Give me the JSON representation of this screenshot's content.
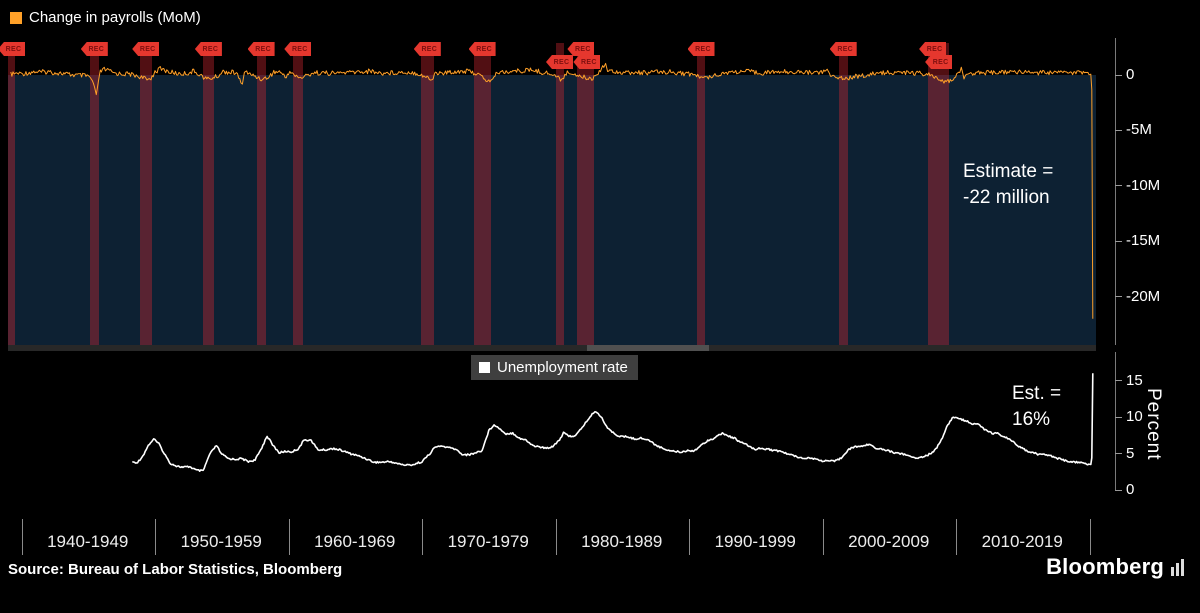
{
  "page": {
    "background": "#000000"
  },
  "x_axis": {
    "labels": [
      "1940-1949",
      "1950-1959",
      "1960-1969",
      "1970-1979",
      "1980-1989",
      "1990-1999",
      "2000-2009",
      "2010-2019"
    ]
  },
  "recessions": {
    "badge_label": "REC",
    "badge_color": "#e5372e",
    "band_color": "rgba(213,40,50,0.38)",
    "bands": [
      {
        "start": 1939.0,
        "end": 1939.5
      },
      {
        "start": 1945.1,
        "end": 1945.8
      },
      {
        "start": 1948.9,
        "end": 1949.8
      },
      {
        "start": 1953.6,
        "end": 1954.4
      },
      {
        "start": 1957.6,
        "end": 1958.3
      },
      {
        "start": 1960.3,
        "end": 1961.1
      },
      {
        "start": 1969.9,
        "end": 1970.9
      },
      {
        "start": 1973.9,
        "end": 1975.2
      },
      {
        "start": 1980.0,
        "end": 1980.6
      },
      {
        "start": 1981.6,
        "end": 1982.9
      },
      {
        "start": 1990.6,
        "end": 1991.2
      },
      {
        "start": 2001.2,
        "end": 2001.9
      },
      {
        "start": 2007.9,
        "end": 2009.5
      }
    ],
    "badges": [
      {
        "x": 1939.25,
        "row": 0
      },
      {
        "x": 1945.45,
        "row": 0
      },
      {
        "x": 1949.3,
        "row": 0
      },
      {
        "x": 1954.0,
        "row": 0
      },
      {
        "x": 1957.95,
        "row": 0
      },
      {
        "x": 1960.7,
        "row": 0
      },
      {
        "x": 1970.4,
        "row": 0
      },
      {
        "x": 1974.5,
        "row": 0
      },
      {
        "x": 1980.3,
        "row": 1
      },
      {
        "x": 1981.9,
        "row": 0
      },
      {
        "x": 1982.35,
        "row": 1
      },
      {
        "x": 1990.9,
        "row": 0
      },
      {
        "x": 2001.55,
        "row": 0
      },
      {
        "x": 2008.25,
        "row": 0
      },
      {
        "x": 2008.7,
        "row": 1
      }
    ]
  },
  "footer": {
    "source": "Source: Bureau of Labor Statistics, Bloomberg",
    "brand": "Bloomberg"
  },
  "chart_data": [
    {
      "type": "line",
      "legend": "Change in payrolls (MoM)",
      "line_color": "#ffa028",
      "plot_bg": "#0d2133",
      "annotation_lines": [
        "Estimate =",
        "-22 million"
      ],
      "y_unit": "millions of jobs",
      "ylim": [
        -23.5,
        3.3
      ],
      "xlim": [
        1939,
        2021.6
      ],
      "grid": false,
      "legend_position": "top-left",
      "y_ticks": [
        {
          "label": "0",
          "value": 0
        },
        {
          "label": "-5M",
          "value": -5
        },
        {
          "label": "-10M",
          "value": -10
        },
        {
          "label": "-15M",
          "value": -15
        },
        {
          "label": "-20M",
          "value": -20
        }
      ],
      "points": [
        [
          1939.2,
          0.05
        ],
        [
          1939.6,
          0.15
        ],
        [
          1940,
          0.1
        ],
        [
          1940.5,
          0.2
        ],
        [
          1941,
          0.3
        ],
        [
          1941.5,
          0.25
        ],
        [
          1942,
          0.3
        ],
        [
          1942.5,
          0.2
        ],
        [
          1943,
          0.15
        ],
        [
          1943.5,
          0.05
        ],
        [
          1944,
          0.0
        ],
        [
          1944.5,
          -0.05
        ],
        [
          1945.0,
          -0.1
        ],
        [
          1945.3,
          -0.5
        ],
        [
          1945.6,
          -1.9
        ],
        [
          1945.75,
          -0.6
        ],
        [
          1945.9,
          0.3
        ],
        [
          1946.2,
          0.5
        ],
        [
          1946.6,
          0.35
        ],
        [
          1947,
          0.15
        ],
        [
          1947.5,
          0.1
        ],
        [
          1948,
          0.1
        ],
        [
          1948.6,
          -0.05
        ],
        [
          1949,
          -0.2
        ],
        [
          1949.4,
          -0.45
        ],
        [
          1949.7,
          -0.25
        ],
        [
          1950,
          0.3
        ],
        [
          1950.4,
          0.55
        ],
        [
          1950.8,
          0.4
        ],
        [
          1951.2,
          0.25
        ],
        [
          1951.8,
          0.1
        ],
        [
          1952.4,
          0.15
        ],
        [
          1952.9,
          0.35
        ],
        [
          1953.3,
          0.1
        ],
        [
          1953.8,
          -0.35
        ],
        [
          1954.2,
          -0.3
        ],
        [
          1954.7,
          -0.1
        ],
        [
          1955.1,
          0.3
        ],
        [
          1955.6,
          0.25
        ],
        [
          1956.1,
          0.2
        ],
        [
          1956.55,
          -1.0
        ],
        [
          1956.7,
          0.45
        ],
        [
          1957.1,
          0.05
        ],
        [
          1957.7,
          -0.2
        ],
        [
          1958.1,
          -0.4
        ],
        [
          1958.5,
          -0.15
        ],
        [
          1958.9,
          0.25
        ],
        [
          1959.4,
          0.3
        ],
        [
          1959.75,
          -0.25
        ],
        [
          1960.1,
          0.35
        ],
        [
          1960.5,
          -0.1
        ],
        [
          1960.9,
          -0.25
        ],
        [
          1961.3,
          -0.1
        ],
        [
          1961.8,
          0.2
        ],
        [
          1962.5,
          0.2
        ],
        [
          1963.2,
          0.15
        ],
        [
          1964,
          0.2
        ],
        [
          1964.8,
          0.25
        ],
        [
          1965.5,
          0.3
        ],
        [
          1966.2,
          0.35
        ],
        [
          1966.9,
          0.15
        ],
        [
          1967.6,
          0.2
        ],
        [
          1968.4,
          0.25
        ],
        [
          1969.2,
          0.25
        ],
        [
          1969.8,
          0.1
        ],
        [
          1970.3,
          -0.2
        ],
        [
          1970.75,
          -0.45
        ],
        [
          1971,
          0.2
        ],
        [
          1971.6,
          0.15
        ],
        [
          1972.3,
          0.3
        ],
        [
          1973,
          0.35
        ],
        [
          1973.7,
          0.3
        ],
        [
          1974.2,
          0.05
        ],
        [
          1974.7,
          -0.35
        ],
        [
          1975.0,
          -0.6
        ],
        [
          1975.3,
          -0.3
        ],
        [
          1975.7,
          0.25
        ],
        [
          1976.3,
          0.3
        ],
        [
          1977,
          0.35
        ],
        [
          1977.7,
          0.4
        ],
        [
          1978.3,
          0.45
        ],
        [
          1979,
          0.25
        ],
        [
          1979.7,
          0.1
        ],
        [
          1980.2,
          -0.25
        ],
        [
          1980.45,
          -0.4
        ],
        [
          1980.8,
          0.15
        ],
        [
          1981.3,
          0.2
        ],
        [
          1981.8,
          -0.1
        ],
        [
          1982.3,
          -0.25
        ],
        [
          1982.8,
          -0.3
        ],
        [
          1983.2,
          0.25
        ],
        [
          1983.75,
          1.1
        ],
        [
          1983.9,
          0.35
        ],
        [
          1984.5,
          0.35
        ],
        [
          1985.2,
          0.2
        ],
        [
          1986,
          0.2
        ],
        [
          1986.8,
          0.2
        ],
        [
          1987.6,
          0.25
        ],
        [
          1988.4,
          0.3
        ],
        [
          1989.2,
          0.2
        ],
        [
          1989.8,
          0.1
        ],
        [
          1990.4,
          0.05
        ],
        [
          1990.8,
          -0.2
        ],
        [
          1991.2,
          -0.3
        ],
        [
          1991.7,
          -0.05
        ],
        [
          1992.3,
          0.1
        ],
        [
          1993,
          0.25
        ],
        [
          1993.8,
          0.3
        ],
        [
          1994.6,
          0.3
        ],
        [
          1995.4,
          0.2
        ],
        [
          1996.2,
          0.25
        ],
        [
          1997,
          0.3
        ],
        [
          1997.8,
          0.3
        ],
        [
          1998.6,
          0.25
        ],
        [
          1999.4,
          0.25
        ],
        [
          2000.1,
          0.3
        ],
        [
          2000.35,
          0.45
        ],
        [
          2000.6,
          -0.1
        ],
        [
          2001,
          -0.1
        ],
        [
          2001.5,
          -0.25
        ],
        [
          2001.9,
          -0.3
        ],
        [
          2002.4,
          -0.1
        ],
        [
          2003,
          -0.1
        ],
        [
          2003.6,
          0.05
        ],
        [
          2004.3,
          0.2
        ],
        [
          2005,
          0.2
        ],
        [
          2005.8,
          0.25
        ],
        [
          2006.5,
          0.2
        ],
        [
          2007.2,
          0.15
        ],
        [
          2007.8,
          0.1
        ],
        [
          2008.3,
          -0.2
        ],
        [
          2008.8,
          -0.5
        ],
        [
          2009.1,
          -0.75
        ],
        [
          2009.4,
          -0.55
        ],
        [
          2009.8,
          -0.25
        ],
        [
          2010.2,
          0.1
        ],
        [
          2010.4,
          0.5
        ],
        [
          2010.6,
          -0.15
        ],
        [
          2011,
          0.15
        ],
        [
          2011.7,
          0.2
        ],
        [
          2012.4,
          0.2
        ],
        [
          2013.1,
          0.2
        ],
        [
          2013.8,
          0.25
        ],
        [
          2014.5,
          0.3
        ],
        [
          2015.2,
          0.25
        ],
        [
          2016,
          0.2
        ],
        [
          2016.8,
          0.2
        ],
        [
          2017.6,
          0.2
        ],
        [
          2018.4,
          0.22
        ],
        [
          2019.2,
          0.18
        ],
        [
          2019.8,
          0.2
        ],
        [
          2020.1,
          0.25
        ],
        [
          2020.17,
          -1.4
        ],
        [
          2020.25,
          -22
        ]
      ]
    },
    {
      "type": "line",
      "legend": "Unemployment rate",
      "line_color": "#ffffff",
      "annotation_lines": [
        "Est. =",
        "16%"
      ],
      "ylabel": "Percent",
      "ylim": [
        0,
        19
      ],
      "xlim": [
        1939,
        2021.6
      ],
      "grid": false,
      "legend_position": "top-center",
      "y_ticks": [
        {
          "label": "15",
          "value": 15
        },
        {
          "label": "10",
          "value": 10
        },
        {
          "label": "5",
          "value": 5
        },
        {
          "label": "0",
          "value": 0
        }
      ],
      "points": [
        [
          1948.3,
          3.8
        ],
        [
          1948.7,
          3.8
        ],
        [
          1949.1,
          4.7
        ],
        [
          1949.5,
          6.1
        ],
        [
          1949.9,
          7.0
        ],
        [
          1950.3,
          6.3
        ],
        [
          1950.7,
          5.0
        ],
        [
          1951.1,
          3.7
        ],
        [
          1951.6,
          3.3
        ],
        [
          1952.1,
          3.1
        ],
        [
          1952.6,
          3.2
        ],
        [
          1953.1,
          2.7
        ],
        [
          1953.6,
          2.6
        ],
        [
          1954.1,
          4.9
        ],
        [
          1954.6,
          6.1
        ],
        [
          1955.0,
          4.9
        ],
        [
          1955.5,
          4.3
        ],
        [
          1956,
          4.2
        ],
        [
          1956.5,
          4.3
        ],
        [
          1957,
          3.9
        ],
        [
          1957.5,
          4.1
        ],
        [
          1958,
          5.8
        ],
        [
          1958.4,
          7.4
        ],
        [
          1958.8,
          6.2
        ],
        [
          1959.3,
          5.1
        ],
        [
          1959.8,
          5.3
        ],
        [
          1960.2,
          5.2
        ],
        [
          1960.7,
          5.6
        ],
        [
          1961.2,
          6.9
        ],
        [
          1961.7,
          6.8
        ],
        [
          1962.2,
          5.5
        ],
        [
          1962.8,
          5.5
        ],
        [
          1963.4,
          5.7
        ],
        [
          1964,
          5.4
        ],
        [
          1964.6,
          5.0
        ],
        [
          1965.2,
          4.7
        ],
        [
          1965.8,
          4.3
        ],
        [
          1966.4,
          3.8
        ],
        [
          1967,
          3.8
        ],
        [
          1967.6,
          3.9
        ],
        [
          1968.2,
          3.6
        ],
        [
          1968.8,
          3.4
        ],
        [
          1969.4,
          3.5
        ],
        [
          1970,
          3.9
        ],
        [
          1970.5,
          4.8
        ],
        [
          1971,
          5.9
        ],
        [
          1971.5,
          6.0
        ],
        [
          1972,
          5.8
        ],
        [
          1972.5,
          5.6
        ],
        [
          1973,
          4.9
        ],
        [
          1973.5,
          4.8
        ],
        [
          1974,
          5.1
        ],
        [
          1974.5,
          5.4
        ],
        [
          1975,
          8.1
        ],
        [
          1975.4,
          9.0
        ],
        [
          1975.8,
          8.4
        ],
        [
          1976.3,
          7.7
        ],
        [
          1976.8,
          7.8
        ],
        [
          1977.3,
          7.1
        ],
        [
          1977.8,
          6.8
        ],
        [
          1978.3,
          6.1
        ],
        [
          1978.8,
          5.9
        ],
        [
          1979.3,
          5.7
        ],
        [
          1979.8,
          6.0
        ],
        [
          1980.3,
          6.9
        ],
        [
          1980.6,
          7.8
        ],
        [
          1981,
          7.4
        ],
        [
          1981.5,
          7.4
        ],
        [
          1982,
          8.6
        ],
        [
          1982.5,
          9.8
        ],
        [
          1982.95,
          10.8
        ],
        [
          1983.4,
          10.1
        ],
        [
          1983.9,
          8.5
        ],
        [
          1984.4,
          7.7
        ],
        [
          1984.9,
          7.3
        ],
        [
          1985.4,
          7.3
        ],
        [
          1985.9,
          7.0
        ],
        [
          1986.4,
          7.1
        ],
        [
          1986.9,
          6.9
        ],
        [
          1987.4,
          6.3
        ],
        [
          1987.9,
          5.8
        ],
        [
          1988.4,
          5.5
        ],
        [
          1988.9,
          5.3
        ],
        [
          1989.4,
          5.2
        ],
        [
          1989.9,
          5.4
        ],
        [
          1990.4,
          5.4
        ],
        [
          1990.9,
          6.1
        ],
        [
          1991.4,
          6.8
        ],
        [
          1991.9,
          7.1
        ],
        [
          1992.5,
          7.8
        ],
        [
          1992.9,
          7.4
        ],
        [
          1993.4,
          7.1
        ],
        [
          1993.9,
          6.5
        ],
        [
          1994.4,
          6.1
        ],
        [
          1994.9,
          5.6
        ],
        [
          1995.4,
          5.7
        ],
        [
          1995.9,
          5.6
        ],
        [
          1996.4,
          5.4
        ],
        [
          1996.9,
          5.3
        ],
        [
          1997.4,
          4.9
        ],
        [
          1997.9,
          4.7
        ],
        [
          1998.4,
          4.4
        ],
        [
          1998.9,
          4.4
        ],
        [
          1999.4,
          4.3
        ],
        [
          1999.9,
          4.0
        ],
        [
          2000.4,
          4.0
        ],
        [
          2000.9,
          3.9
        ],
        [
          2001.4,
          4.4
        ],
        [
          2001.9,
          5.5
        ],
        [
          2002.4,
          5.9
        ],
        [
          2002.9,
          6.0
        ],
        [
          2003.4,
          6.2
        ],
        [
          2003.6,
          6.3
        ],
        [
          2003.9,
          5.8
        ],
        [
          2004.4,
          5.6
        ],
        [
          2004.9,
          5.4
        ],
        [
          2005.4,
          5.1
        ],
        [
          2005.9,
          5.0
        ],
        [
          2006.4,
          4.7
        ],
        [
          2006.9,
          4.4
        ],
        [
          2007.4,
          4.5
        ],
        [
          2007.9,
          4.8
        ],
        [
          2008.4,
          5.4
        ],
        [
          2008.9,
          6.8
        ],
        [
          2009.3,
          8.7
        ],
        [
          2009.8,
          10.0
        ],
        [
          2010.2,
          9.8
        ],
        [
          2010.7,
          9.5
        ],
        [
          2011.2,
          9.1
        ],
        [
          2011.7,
          9.0
        ],
        [
          2012.2,
          8.2
        ],
        [
          2012.7,
          7.8
        ],
        [
          2013.2,
          7.7
        ],
        [
          2013.7,
          7.2
        ],
        [
          2014.2,
          6.7
        ],
        [
          2014.7,
          5.9
        ],
        [
          2015.2,
          5.5
        ],
        [
          2015.7,
          5.1
        ],
        [
          2016.2,
          4.9
        ],
        [
          2016.7,
          4.9
        ],
        [
          2017.2,
          4.6
        ],
        [
          2017.7,
          4.3
        ],
        [
          2018.2,
          4.0
        ],
        [
          2018.7,
          3.8
        ],
        [
          2019.2,
          3.8
        ],
        [
          2019.7,
          3.6
        ],
        [
          2020.1,
          3.5
        ],
        [
          2020.17,
          4.4
        ],
        [
          2020.25,
          16
        ]
      ]
    }
  ]
}
